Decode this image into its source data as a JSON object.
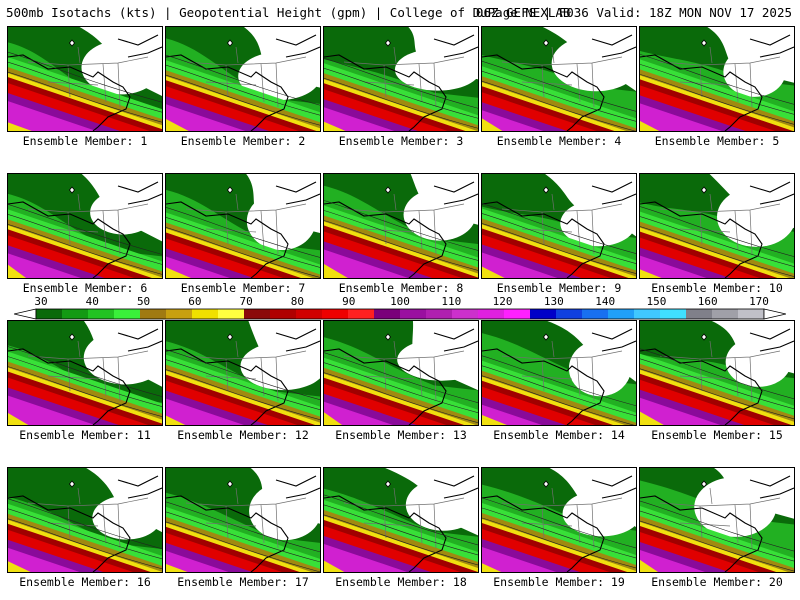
{
  "header": {
    "left": "500mb Isotachs (kts) | Geopotential Height (gpm) | College of DuPage NEXLAB",
    "right": "06Z GEFS | F036 Valid: 18Z MON NOV 17 2025"
  },
  "panels": [
    {
      "caption": "Ensemble Member: 1"
    },
    {
      "caption": "Ensemble Member: 2"
    },
    {
      "caption": "Ensemble Member: 3"
    },
    {
      "caption": "Ensemble Member: 4"
    },
    {
      "caption": "Ensemble Member: 5"
    },
    {
      "caption": "Ensemble Member: 6"
    },
    {
      "caption": "Ensemble Member: 7"
    },
    {
      "caption": "Ensemble Member: 8"
    },
    {
      "caption": "Ensemble Member: 9"
    },
    {
      "caption": "Ensemble Member: 10"
    },
    {
      "caption": "Ensemble Member: 11"
    },
    {
      "caption": "Ensemble Member: 12"
    },
    {
      "caption": "Ensemble Member: 13"
    },
    {
      "caption": "Ensemble Member: 14"
    },
    {
      "caption": "Ensemble Member: 15"
    },
    {
      "caption": "Ensemble Member: 16"
    },
    {
      "caption": "Ensemble Member: 17"
    },
    {
      "caption": "Ensemble Member: 18"
    },
    {
      "caption": "Ensemble Member: 19"
    },
    {
      "caption": "Ensemble Member: 20"
    }
  ],
  "scale": {
    "labels": [
      "30",
      "40",
      "50",
      "60",
      "70",
      "80",
      "90",
      "100",
      "110",
      "120",
      "130",
      "140",
      "150",
      "160",
      "170"
    ],
    "colors": [
      "#0a6a0a",
      "#139a13",
      "#22c322",
      "#3af03a",
      "#a07a12",
      "#c8a010",
      "#f0e000",
      "#ffff40",
      "#8b0a0a",
      "#b00000",
      "#d00000",
      "#ee0000",
      "#ff2020",
      "#7a007a",
      "#9a10a0",
      "#b020b0",
      "#cc30cc",
      "#e020e0",
      "#ff20ff",
      "#0000c8",
      "#1040e0",
      "#1870f0",
      "#20a0f8",
      "#40c8ff",
      "#40e0ff",
      "#80808a",
      "#a0a0a8",
      "#c0c0c8"
    ]
  },
  "colors": {
    "dark_green": "#0a6a0a",
    "green": "#22b022",
    "light_green": "#38e038",
    "olive": "#a08a10",
    "yellow": "#f0e010",
    "dark_red": "#a00000",
    "red": "#e00000",
    "purple": "#8a0a9a",
    "magenta": "#d020d0",
    "border": "#000000"
  }
}
